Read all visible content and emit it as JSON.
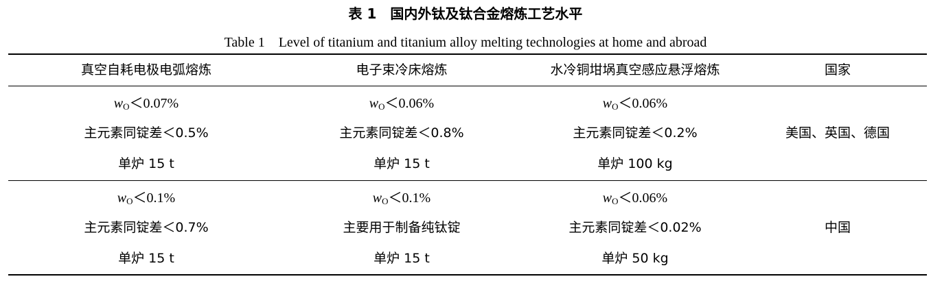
{
  "caption_cn": "表 1　国内外钛及钛合金熔炼工艺水平",
  "caption_en": "Table 1　Level of titanium and titanium alloy melting technologies at home and abroad",
  "headers": [
    "真空自耗电极电弧熔炼",
    "电子束冷床熔炼",
    "水冷铜坩埚真空感应悬浮熔炼",
    "国家"
  ],
  "rows": [
    {
      "cells": [
        {
          "oxygen": {
            "var": "w",
            "sub": "O",
            "rest": "＜0.07%"
          },
          "deviation": "主元素同锭差＜0.5%",
          "capacity": "单炉 15 t"
        },
        {
          "oxygen": {
            "var": "w",
            "sub": "O",
            "rest": "＜0.06%"
          },
          "deviation": "主元素同锭差＜0.8%",
          "capacity": "单炉 15 t"
        },
        {
          "oxygen": {
            "var": "w",
            "sub": "O",
            "rest": "＜0.06%"
          },
          "deviation": "主元素同锭差＜0.2%",
          "capacity": "单炉 100 kg"
        }
      ],
      "country": "美国、英国、德国"
    },
    {
      "cells": [
        {
          "oxygen": {
            "var": "w",
            "sub": "O",
            "rest": "＜0.1%"
          },
          "deviation": "主元素同锭差＜0.7%",
          "capacity": "单炉 15 t"
        },
        {
          "oxygen": {
            "var": "w",
            "sub": "O",
            "rest": "＜0.1%"
          },
          "deviation": "主要用于制备纯钛锭",
          "capacity": "单炉 15 t"
        },
        {
          "oxygen": {
            "var": "w",
            "sub": "O",
            "rest": "＜0.06%"
          },
          "deviation": "主元素同锭差＜0.02%",
          "capacity": "单炉 50 kg"
        }
      ],
      "country": "中国"
    }
  ]
}
